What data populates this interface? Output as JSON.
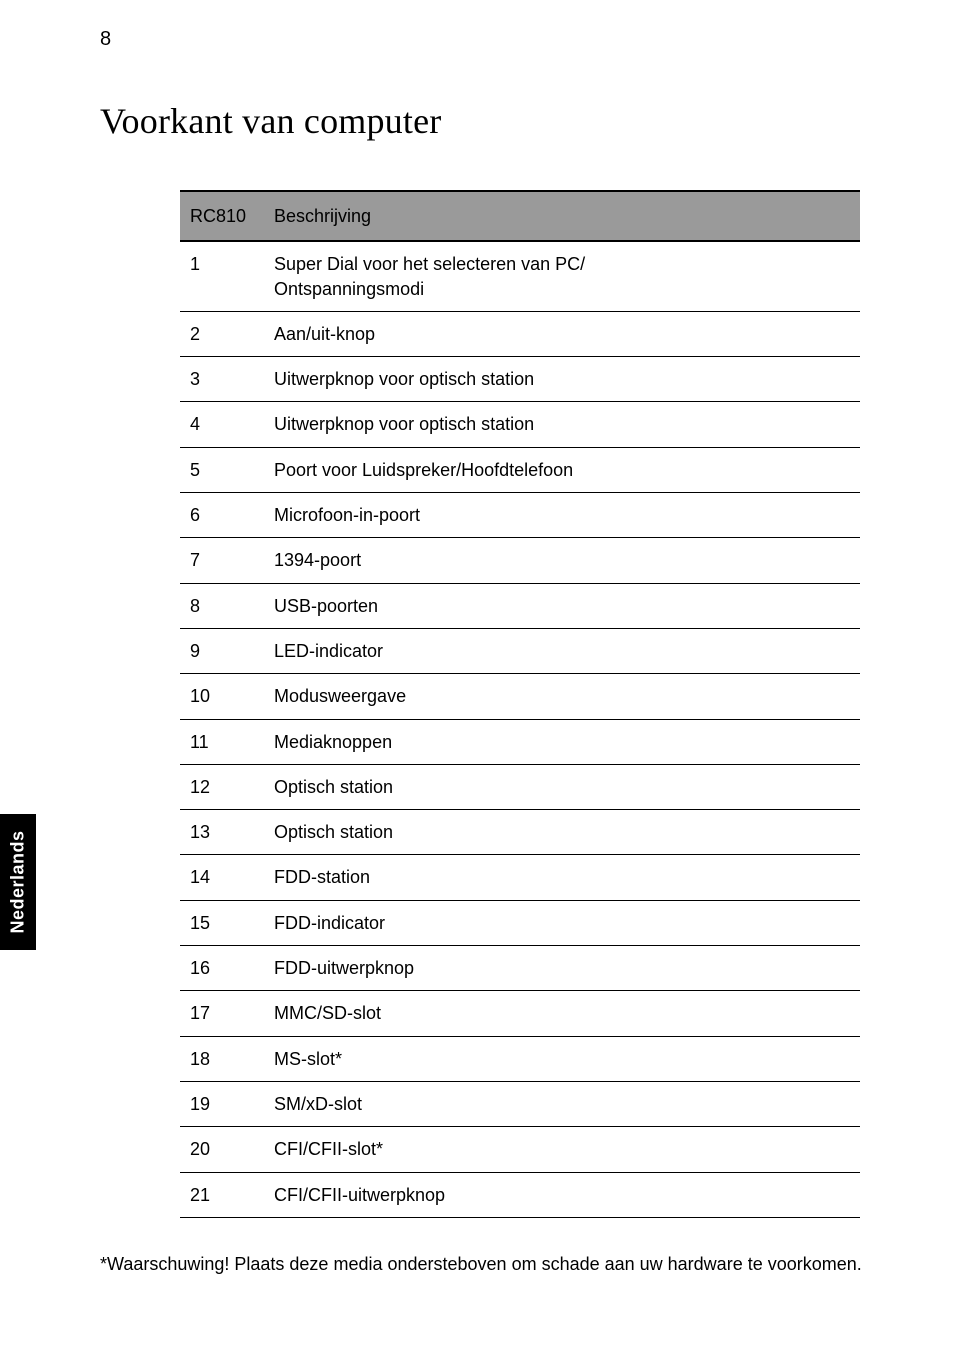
{
  "page_number": "8",
  "title": "Voorkant van computer",
  "side_tab": "Nederlands",
  "table": {
    "header": {
      "col1": "RC810",
      "col2": "Beschrijving"
    },
    "rows": [
      {
        "n": "1",
        "d": "Super Dial voor het selecteren van PC/\nOntspanningsmodi"
      },
      {
        "n": "2",
        "d": "Aan/uit-knop"
      },
      {
        "n": "3",
        "d": "Uitwerpknop voor optisch station"
      },
      {
        "n": "4",
        "d": "Uitwerpknop voor optisch station"
      },
      {
        "n": "5",
        "d": "Poort voor Luidspreker/Hoofdtelefoon"
      },
      {
        "n": "6",
        "d": "Microfoon-in-poort"
      },
      {
        "n": "7",
        "d": "1394-poort"
      },
      {
        "n": "8",
        "d": "USB-poorten"
      },
      {
        "n": "9",
        "d": "LED-indicator"
      },
      {
        "n": "10",
        "d": "Modusweergave"
      },
      {
        "n": "11",
        "d": "Mediaknoppen"
      },
      {
        "n": "12",
        "d": "Optisch station"
      },
      {
        "n": "13",
        "d": "Optisch station"
      },
      {
        "n": "14",
        "d": "FDD-station"
      },
      {
        "n": "15",
        "d": "FDD-indicator"
      },
      {
        "n": "16",
        "d": "FDD-uitwerpknop"
      },
      {
        "n": "17",
        "d": "MMC/SD-slot"
      },
      {
        "n": "18",
        "d": "MS-slot*"
      },
      {
        "n": "19",
        "d": "SM/xD-slot"
      },
      {
        "n": "20",
        "d": "CFI/CFII-slot*"
      },
      {
        "n": "21",
        "d": "CFI/CFII-uitwerpknop"
      }
    ]
  },
  "footnote": "*Waarschuwing! Plaats deze media ondersteboven om schade aan uw hardware te voorkomen.",
  "colors": {
    "header_bg": "#9a9a9a",
    "border": "#000000",
    "text": "#000000",
    "background": "#ffffff",
    "sidetab_bg": "#000000",
    "sidetab_text": "#ffffff"
  },
  "fonts": {
    "title_family": "Georgia, serif",
    "body_family": "Arial, sans-serif",
    "title_size_pt": 27,
    "body_size_pt": 13.5
  }
}
